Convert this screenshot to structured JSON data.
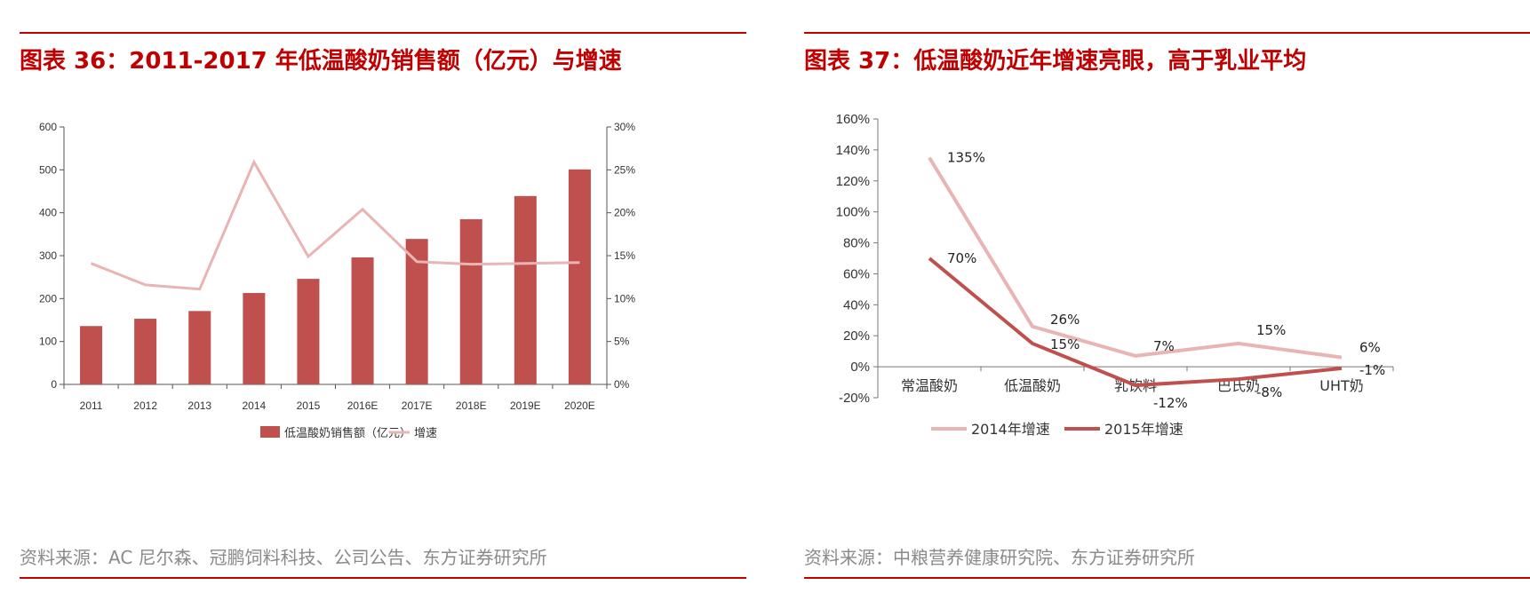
{
  "left": {
    "title": "图表 36：2011-2017 年低温酸奶销售额（亿元）与增速",
    "source": "资料来源：AC 尼尔森、冠鹏饲料科技、公司公告、东方证券研究所"
  },
  "right": {
    "title": "图表 37：低温酸奶近年增速亮眼，高于乳业平均",
    "source": "资料来源：中粮营养健康研究院、东方证券研究所"
  },
  "chart_data": [
    {
      "type": "bar",
      "title": "2011-2017 年低温酸奶销售额（亿元）与增速",
      "categories": [
        "2011",
        "2012",
        "2013",
        "2014",
        "2015",
        "2016E",
        "2017E",
        "2018E",
        "2019E",
        "2020E"
      ],
      "series": [
        {
          "name": "低温酸奶销售额（亿元）",
          "type": "bar",
          "axis": "left",
          "color": "#c0504d",
          "values": [
            136,
            153,
            171,
            213,
            246,
            296,
            339,
            385,
            439,
            501
          ]
        },
        {
          "name": "增速",
          "type": "line",
          "axis": "right",
          "color": "#e8b4b4",
          "values": [
            14.1,
            11.6,
            11.1,
            25.9,
            14.9,
            20.4,
            14.3,
            14.0,
            14.1,
            14.2
          ]
        }
      ],
      "yleft": {
        "ylim": [
          0,
          600
        ],
        "ticks": [
          "0",
          "100",
          "200",
          "300",
          "400",
          "500",
          "600"
        ]
      },
      "yright": {
        "ylim": [
          0,
          30
        ],
        "ticks": [
          "0%",
          "5%",
          "10%",
          "15%",
          "20%",
          "25%",
          "30%"
        ]
      },
      "legend": [
        "低温酸奶销售额（亿元）",
        "增速"
      ],
      "legend_position": "bottom"
    },
    {
      "type": "line",
      "title": "低温酸奶近年增速亮眼，高于乳业平均",
      "categories": [
        "常温酸奶",
        "低温酸奶",
        "乳饮料",
        "巴氏奶",
        "UHT奶"
      ],
      "series": [
        {
          "name": "2014年增速",
          "color": "#e8b4b4",
          "values": [
            135,
            26,
            7,
            15,
            6
          ],
          "labels": [
            "135%",
            "26%",
            "7%",
            "15%",
            "6%"
          ]
        },
        {
          "name": "2015年增速",
          "color": "#c0504d",
          "values": [
            70,
            15,
            -12,
            -8,
            -1
          ],
          "labels": [
            "70%",
            "15%",
            "-12%",
            "-8%",
            "-1%"
          ]
        }
      ],
      "ylim": [
        -20,
        160
      ],
      "yticks": [
        "-20%",
        "0%",
        "20%",
        "40%",
        "60%",
        "80%",
        "100%",
        "120%",
        "140%",
        "160%"
      ],
      "legend": [
        "2014年增速",
        "2015年增速"
      ],
      "legend_position": "bottom"
    }
  ]
}
